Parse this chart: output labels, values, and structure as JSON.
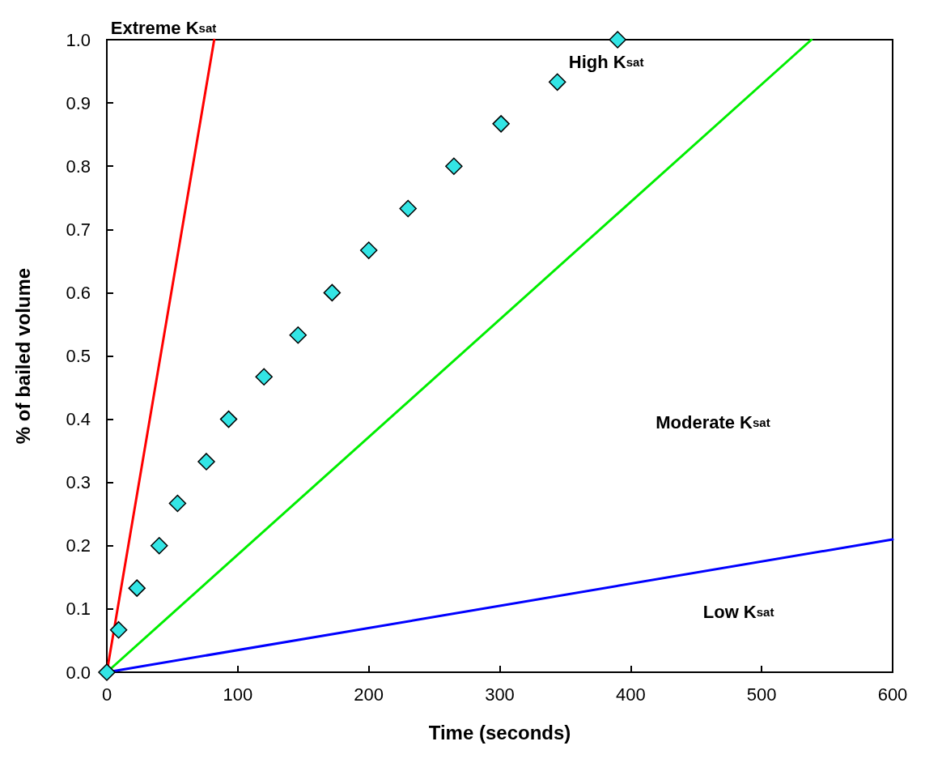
{
  "chart_data": {
    "type": "line",
    "xlabel": "Time (seconds)",
    "ylabel": "% of bailed volume",
    "xlim": [
      0,
      600
    ],
    "ylim": [
      0,
      1
    ],
    "xticks": [
      0,
      100,
      200,
      300,
      400,
      500,
      600
    ],
    "yticks": [
      {
        "value": 0,
        "label": "0.0"
      },
      0.1,
      0.2,
      0.3,
      0.4,
      0.5,
      0.6,
      0.7,
      0.8,
      0.9,
      {
        "value": 1,
        "label": "1.0"
      }
    ],
    "line_style": "solid",
    "series": [
      {
        "color": "#ff0000",
        "x": [
          0,
          82
        ],
        "values": [
          0,
          1
        ],
        "marker": "none"
      },
      {
        "color": "#00ee00",
        "x": [
          0,
          538
        ],
        "values": [
          0,
          1
        ],
        "marker": "none"
      },
      {
        "color": "#0000ff",
        "x": [
          0,
          600
        ],
        "values": [
          0,
          0.21
        ],
        "marker": "none"
      },
      {
        "type": "scatter",
        "color": "#33e5e5",
        "marker": "diamond",
        "x": [
          0,
          9,
          23,
          40,
          54,
          76,
          93,
          120,
          146,
          172,
          200,
          230,
          265,
          301,
          344,
          390
        ],
        "values": [
          0,
          0.067,
          0.133,
          0.2,
          0.267,
          0.333,
          0.4,
          0.467,
          0.533,
          0.6,
          0.667,
          0.733,
          0.8,
          0.867,
          0.933,
          1.0
        ]
      }
    ],
    "annotations": [
      "Extreme K$_{sat}$",
      "High K$_{sat}$",
      "Moderate K$_{sat}$",
      "Low K$_{sat}$"
    ]
  }
}
